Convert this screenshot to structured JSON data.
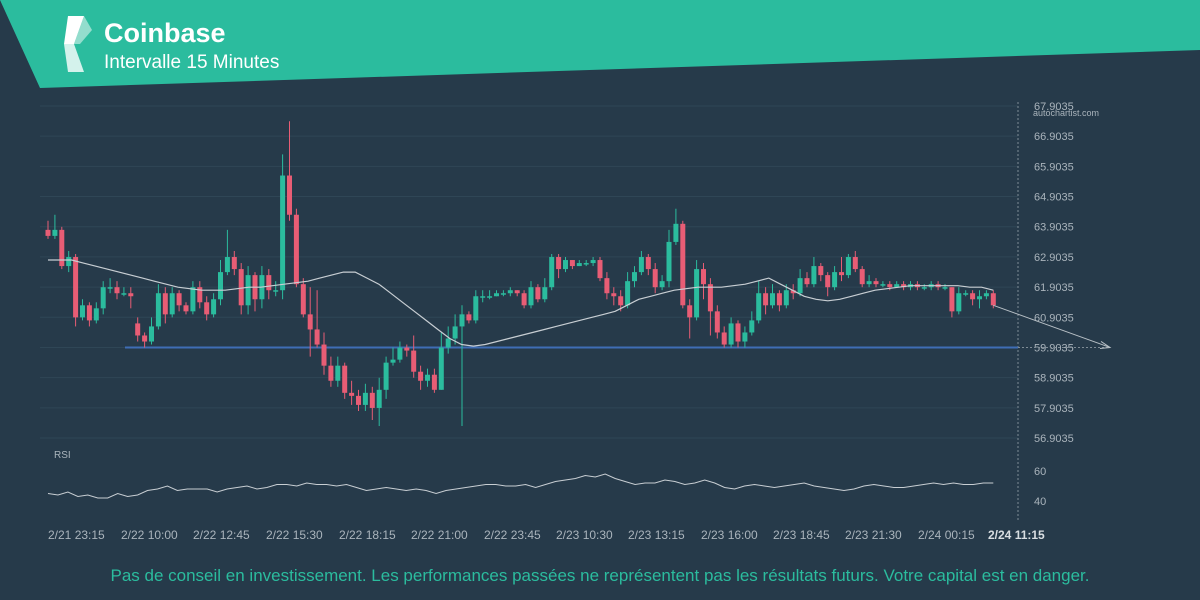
{
  "header": {
    "brand": "Coinbase",
    "subtitle": "Intervalle 15 Minutes",
    "band_color": "#2bbc9e"
  },
  "watermark": "autochartist.com",
  "disclaimer": "Pas de conseil en investissement. Les performances passées ne représentent pas les résultats futurs. Votre capital est en danger.",
  "colors": {
    "background": "#263a4a",
    "up": "#2bbc9e",
    "down": "#e85d75",
    "ma": "#c8ced3",
    "level": "#3f6db5",
    "text": "#aab4bc"
  },
  "chart_data": {
    "type": "candlestick",
    "price_axis": {
      "ticks": [
        "67.9035",
        "66.9035",
        "65.9035",
        "64.9035",
        "63.9035",
        "62.9035",
        "61.9035",
        "60.9035",
        "59.9035",
        "58.9035",
        "57.9035",
        "56.9035"
      ],
      "range": [
        56.9035,
        67.9035
      ]
    },
    "time_axis": {
      "labels": [
        "2/21 23:15",
        "2/22 10:00",
        "2/22 12:45",
        "2/22 15:30",
        "2/22 18:15",
        "2/22 21:00",
        "2/22 23:45",
        "2/23 10:30",
        "2/23 13:15",
        "2/23 16:00",
        "2/23 18:45",
        "2/23 21:30",
        "2/24 00:15",
        "2/24 11:15"
      ],
      "current_label": "2/24 11:15"
    },
    "level_line": {
      "label": "59.9035",
      "value": 59.9035,
      "forecast_target": 59.9035
    },
    "candles": [
      [
        63.8,
        63.6,
        64.1,
        63.5
      ],
      [
        63.6,
        63.8,
        64.3,
        63.5
      ],
      [
        63.8,
        62.6,
        63.9,
        62.5
      ],
      [
        62.6,
        62.9,
        63.1,
        62.4
      ],
      [
        62.9,
        60.9,
        63.0,
        60.6
      ],
      [
        60.9,
        61.3,
        61.5,
        60.8
      ],
      [
        61.3,
        60.8,
        61.4,
        60.6
      ],
      [
        60.8,
        61.2,
        61.4,
        60.7
      ],
      [
        61.2,
        61.9,
        62.1,
        61.0
      ],
      [
        61.9,
        61.9,
        62.2,
        61.7
      ],
      [
        61.9,
        61.7,
        62.1,
        61.5
      ],
      [
        61.7,
        61.7,
        61.9,
        61.6
      ],
      [
        61.7,
        61.6,
        61.9,
        61.2
      ],
      [
        60.7,
        60.3,
        60.9,
        60.1
      ],
      [
        60.3,
        60.1,
        60.4,
        59.9
      ],
      [
        60.1,
        60.6,
        60.9,
        60.0
      ],
      [
        60.6,
        61.7,
        62.0,
        60.5
      ],
      [
        61.7,
        61.0,
        61.9,
        60.7
      ],
      [
        61.0,
        61.7,
        61.9,
        60.9
      ],
      [
        61.7,
        61.3,
        61.8,
        61.1
      ],
      [
        61.3,
        61.1,
        61.4,
        61.0
      ],
      [
        61.1,
        61.9,
        62.1,
        61.0
      ],
      [
        61.9,
        61.4,
        62.1,
        61.2
      ],
      [
        61.4,
        61.0,
        61.6,
        60.8
      ],
      [
        61.0,
        61.5,
        61.7,
        60.9
      ],
      [
        61.5,
        62.4,
        62.8,
        61.3
      ],
      [
        62.4,
        62.9,
        63.8,
        62.3
      ],
      [
        62.9,
        62.5,
        63.1,
        62.3
      ],
      [
        62.5,
        61.3,
        62.7,
        61.0
      ],
      [
        61.3,
        62.3,
        62.6,
        61.0
      ],
      [
        62.3,
        61.5,
        62.4,
        61.1
      ],
      [
        61.5,
        62.3,
        62.6,
        61.2
      ],
      [
        62.3,
        61.8,
        62.5,
        61.5
      ],
      [
        61.8,
        61.8,
        62.1,
        61.6
      ],
      [
        61.8,
        65.6,
        66.3,
        61.5
      ],
      [
        65.6,
        64.3,
        67.4,
        64.1
      ],
      [
        64.3,
        62.0,
        64.5,
        61.9
      ],
      [
        62.0,
        61.0,
        62.2,
        60.9
      ],
      [
        61.0,
        60.5,
        61.9,
        59.6
      ],
      [
        60.5,
        60.0,
        61.8,
        59.9
      ],
      [
        60.0,
        59.3,
        60.4,
        59.0
      ],
      [
        59.3,
        58.8,
        59.6,
        58.6
      ],
      [
        58.8,
        59.3,
        59.6,
        58.6
      ],
      [
        59.3,
        58.4,
        59.4,
        58.2
      ],
      [
        58.4,
        58.3,
        58.8,
        58.0
      ],
      [
        58.3,
        58.0,
        58.5,
        57.8
      ],
      [
        58.0,
        58.4,
        58.7,
        57.8
      ],
      [
        58.4,
        57.9,
        58.6,
        57.5
      ],
      [
        57.9,
        58.5,
        58.9,
        57.3
      ],
      [
        58.5,
        59.4,
        59.6,
        58.2
      ],
      [
        59.4,
        59.5,
        59.9,
        59.3
      ],
      [
        59.5,
        59.9,
        60.1,
        59.4
      ],
      [
        59.9,
        59.8,
        60.0,
        59.6
      ],
      [
        59.8,
        59.1,
        60.3,
        58.9
      ],
      [
        59.1,
        58.8,
        59.3,
        58.5
      ],
      [
        58.8,
        59.0,
        59.2,
        58.6
      ],
      [
        59.0,
        58.5,
        59.2,
        58.4
      ],
      [
        58.5,
        59.9,
        60.4,
        58.5
      ],
      [
        59.9,
        60.2,
        60.6,
        59.7
      ],
      [
        60.2,
        60.6,
        61.0,
        60.0
      ],
      [
        60.6,
        61.0,
        61.3,
        57.3
      ],
      [
        61.0,
        60.8,
        61.1,
        60.7
      ],
      [
        60.8,
        61.6,
        61.8,
        60.7
      ],
      [
        61.6,
        61.6,
        61.8,
        61.4
      ],
      [
        61.6,
        61.6,
        61.8,
        61.5
      ],
      [
        61.6,
        61.7,
        61.8,
        61.6
      ],
      [
        61.7,
        61.7,
        61.8,
        61.6
      ],
      [
        61.7,
        61.8,
        61.9,
        61.6
      ],
      [
        61.8,
        61.7,
        61.8,
        61.6
      ],
      [
        61.7,
        61.3,
        61.8,
        61.2
      ],
      [
        61.3,
        61.9,
        62.1,
        61.2
      ],
      [
        61.9,
        61.5,
        62.0,
        61.4
      ],
      [
        61.5,
        61.9,
        62.2,
        61.4
      ],
      [
        61.9,
        62.9,
        63.0,
        61.8
      ],
      [
        62.9,
        62.5,
        63.0,
        62.2
      ],
      [
        62.5,
        62.8,
        62.9,
        62.4
      ],
      [
        62.8,
        62.6,
        62.8,
        62.5
      ],
      [
        62.6,
        62.7,
        62.8,
        62.6
      ],
      [
        62.7,
        62.7,
        62.8,
        62.6
      ],
      [
        62.7,
        62.8,
        62.9,
        62.6
      ],
      [
        62.8,
        62.2,
        62.9,
        62.1
      ],
      [
        62.2,
        61.7,
        62.4,
        61.5
      ],
      [
        61.7,
        61.6,
        61.9,
        61.3
      ],
      [
        61.6,
        61.3,
        61.8,
        61.1
      ],
      [
        61.3,
        62.1,
        62.4,
        61.2
      ],
      [
        62.1,
        62.4,
        62.6,
        61.9
      ],
      [
        62.4,
        62.9,
        63.1,
        62.3
      ],
      [
        62.9,
        62.5,
        63.0,
        62.3
      ],
      [
        62.5,
        61.9,
        62.7,
        61.7
      ],
      [
        61.9,
        62.1,
        62.3,
        61.8
      ],
      [
        62.1,
        63.4,
        63.8,
        61.9
      ],
      [
        63.4,
        64.0,
        64.5,
        63.3
      ],
      [
        64.0,
        61.3,
        64.1,
        61.2
      ],
      [
        61.3,
        60.9,
        61.5,
        60.2
      ],
      [
        60.9,
        62.5,
        62.8,
        60.8
      ],
      [
        62.5,
        62.0,
        62.7,
        61.5
      ],
      [
        62.0,
        61.1,
        62.2,
        60.3
      ],
      [
        61.1,
        60.4,
        61.3,
        60.2
      ],
      [
        60.4,
        60.0,
        60.6,
        59.9
      ],
      [
        60.0,
        60.7,
        60.9,
        59.9
      ],
      [
        60.7,
        60.1,
        60.8,
        59.9
      ],
      [
        60.1,
        60.4,
        60.6,
        59.9
      ],
      [
        60.4,
        60.8,
        61.1,
        60.3
      ],
      [
        60.8,
        61.7,
        62.1,
        60.7
      ],
      [
        61.7,
        61.3,
        61.9,
        61.0
      ],
      [
        61.3,
        61.7,
        62.0,
        61.2
      ],
      [
        61.7,
        61.3,
        61.8,
        61.1
      ],
      [
        61.3,
        61.8,
        62.0,
        61.2
      ],
      [
        61.8,
        61.7,
        62.0,
        61.5
      ],
      [
        61.7,
        62.2,
        62.5,
        61.6
      ],
      [
        62.2,
        62.0,
        62.4,
        61.9
      ],
      [
        62.0,
        62.6,
        62.9,
        61.9
      ],
      [
        62.6,
        62.3,
        62.7,
        62.1
      ],
      [
        62.3,
        61.9,
        62.4,
        61.6
      ],
      [
        61.9,
        62.4,
        62.6,
        61.8
      ],
      [
        62.4,
        62.3,
        62.9,
        62.1
      ],
      [
        62.3,
        62.9,
        63.0,
        62.2
      ],
      [
        62.9,
        62.5,
        63.1,
        62.4
      ],
      [
        62.5,
        62.0,
        62.6,
        61.9
      ],
      [
        62.0,
        62.1,
        62.3,
        61.9
      ],
      [
        62.1,
        62.0,
        62.2,
        61.9
      ],
      [
        62.0,
        62.0,
        62.1,
        61.9
      ],
      [
        62.0,
        61.9,
        62.1,
        61.8
      ],
      [
        61.9,
        62.0,
        62.1,
        61.9
      ],
      [
        62.0,
        61.9,
        62.1,
        61.8
      ],
      [
        61.9,
        62.0,
        62.1,
        61.8
      ],
      [
        62.0,
        61.9,
        62.1,
        61.8
      ],
      [
        61.9,
        61.9,
        62.0,
        61.8
      ],
      [
        61.9,
        62.0,
        62.1,
        61.8
      ],
      [
        62.0,
        61.9,
        62.1,
        61.8
      ],
      [
        61.9,
        61.9,
        62.0,
        61.8
      ],
      [
        61.9,
        61.1,
        61.9,
        60.9
      ],
      [
        61.1,
        61.7,
        61.9,
        61.0
      ],
      [
        61.7,
        61.7,
        61.8,
        61.6
      ],
      [
        61.7,
        61.5,
        61.8,
        61.3
      ],
      [
        61.5,
        61.6,
        61.8,
        61.2
      ],
      [
        61.6,
        61.7,
        61.8,
        61.5
      ],
      [
        61.7,
        61.3,
        61.8,
        61.2
      ]
    ],
    "ma": [
      62.8,
      62.8,
      62.8,
      62.7,
      62.6,
      62.5,
      62.4,
      62.3,
      62.2,
      62.1,
      62.0,
      61.9,
      61.85,
      61.8,
      61.8,
      61.8,
      61.85,
      61.9,
      61.9,
      61.95,
      62.0,
      62.05,
      62.1,
      62.2,
      62.3,
      62.4,
      62.4,
      62.2,
      62.0,
      61.7,
      61.4,
      61.1,
      60.8,
      60.5,
      60.2,
      60.0,
      59.95,
      60.0,
      60.1,
      60.2,
      60.3,
      60.4,
      60.5,
      60.6,
      60.7,
      60.8,
      60.9,
      61.0,
      61.1,
      61.3,
      61.5,
      61.6,
      61.7,
      61.8,
      61.85,
      61.9,
      61.9,
      61.9,
      61.95,
      62.0,
      62.1,
      62.2,
      62.0,
      61.8,
      61.6,
      61.5,
      61.45,
      61.5,
      61.6,
      61.7,
      61.8,
      61.85,
      61.9,
      61.95,
      61.95,
      61.95,
      61.95,
      61.95,
      61.9,
      61.9,
      61.8
    ],
    "rsi": {
      "label": "RSI",
      "ticks": [
        "60",
        "40"
      ],
      "range": [
        30,
        70
      ],
      "values": [
        45,
        44,
        46,
        43,
        44,
        42,
        42,
        45,
        43,
        44,
        47,
        48,
        50,
        47,
        48,
        48,
        48,
        46,
        48,
        49,
        50,
        48,
        49,
        51,
        51,
        50,
        52,
        51,
        51,
        50,
        51,
        49,
        47,
        48,
        49,
        48,
        47,
        48,
        47,
        45,
        47,
        48,
        49,
        50,
        51,
        51,
        50,
        50,
        51,
        49,
        51,
        53,
        54,
        55,
        57,
        56,
        58,
        55,
        53,
        51,
        52,
        52,
        54,
        53,
        51,
        52,
        54,
        52,
        49,
        48,
        50,
        51,
        50,
        49,
        50,
        51,
        52,
        50,
        49,
        48,
        47,
        48,
        50,
        51,
        50,
        49,
        49,
        50,
        51,
        52,
        51,
        52,
        51,
        51,
        52,
        52
      ]
    }
  }
}
